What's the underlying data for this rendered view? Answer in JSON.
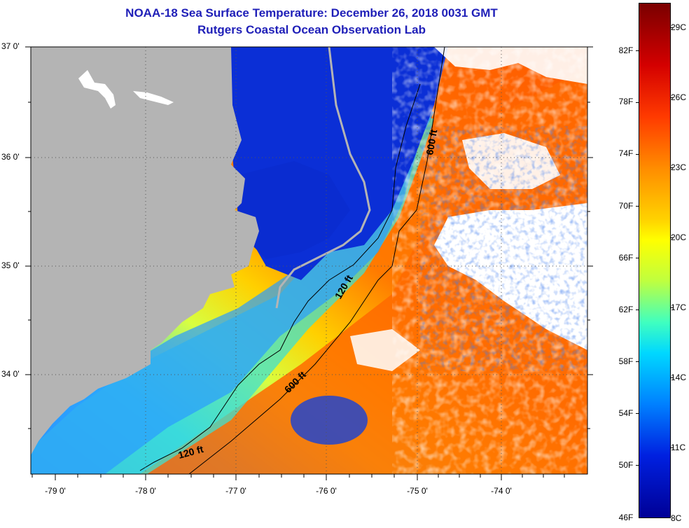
{
  "title": {
    "line1": "NOAA-18 Sea Surface Temperature:  December 26, 2018 0031 GMT",
    "line2": "Rutgers Coastal Ocean Observation Lab"
  },
  "map": {
    "latitude_labels": [
      "37 0'",
      "36 0'",
      "35 0'",
      "34 0'"
    ],
    "longitude_labels": [
      "-79 0'",
      "-78 0'",
      "-77 0'",
      "-76 0'",
      "-75 0'",
      "-74 0'"
    ],
    "isobath_labels": [
      "600 ft",
      "120 ft",
      "600 ft",
      "120 ft"
    ],
    "colors": {
      "land": "#b4b4b4",
      "cloud": "#ffffff",
      "coastal_cold": "#0b2fd6",
      "shelf": "#2aa0ff",
      "midshelf": "#ffe600",
      "gulf_stream": "#ff6a00"
    }
  },
  "colorbar": {
    "fahrenheit_labels": [
      "82F",
      "78F",
      "74F",
      "70F",
      "66F",
      "62F",
      "58F",
      "54F",
      "50F",
      "46F"
    ],
    "celsius_labels": [
      "29C",
      "26C",
      "23C",
      "20C",
      "17C",
      "14C",
      "11C",
      "8C"
    ]
  }
}
